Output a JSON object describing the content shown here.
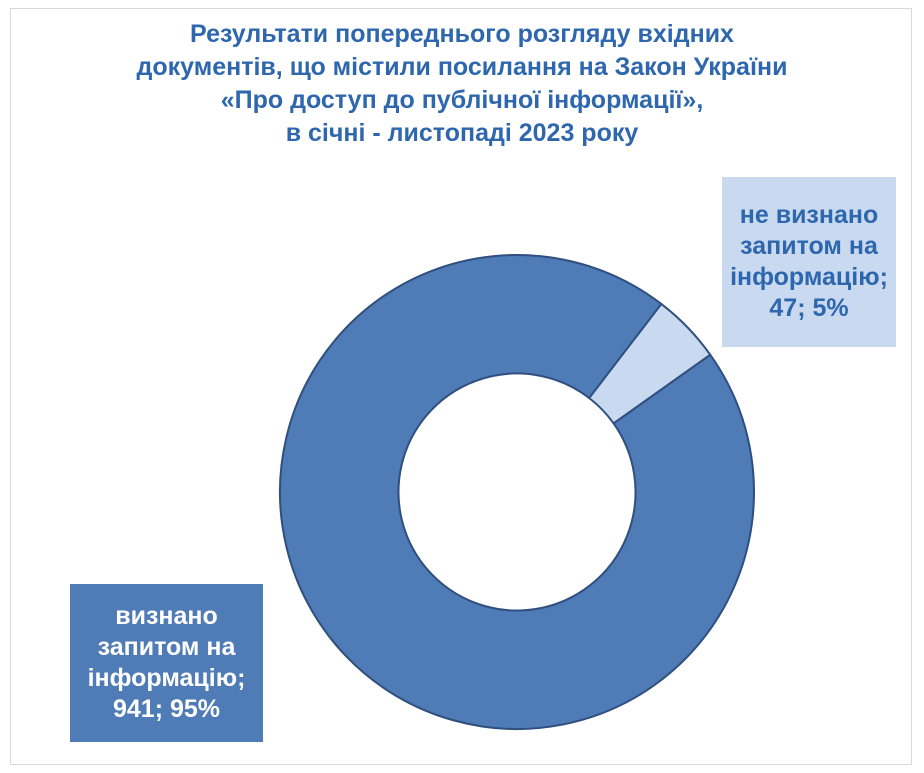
{
  "chart_data": {
    "type": "pie",
    "title_lines": [
      "Результати попереднього розгляду вхідних",
      "документів, що містили посилання на Закон України",
      "«Про доступ до публічної інформації»,",
      "в січні - листопаді 2023 року"
    ],
    "hole": 0.5,
    "slices": [
      {
        "label_lines": [
          "не визнано",
          "запитом на",
          "інформацію;",
          "47; 5%"
        ],
        "value": 47,
        "percent": 5,
        "color": "#c9d9ef"
      },
      {
        "label_lines": [
          "визнано",
          "запитом на",
          "інформацію;",
          "941; 95%"
        ],
        "value": 941,
        "percent": 95,
        "color": "#4f7bb7"
      }
    ],
    "label_box_colors": [
      "#c9d9ef",
      "#4f7bb7"
    ],
    "outline_color": "#2f4f7f"
  }
}
